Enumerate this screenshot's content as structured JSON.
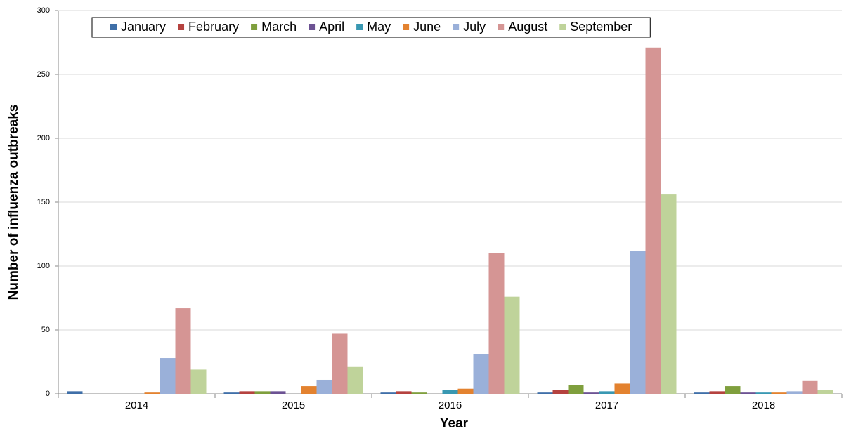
{
  "chart_data": {
    "type": "grouped-bar",
    "xlabel": "Year",
    "ylabel": "Number of influenza outbreaks",
    "categories": [
      "2014",
      "2015",
      "2016",
      "2017",
      "2018"
    ],
    "series": [
      {
        "name": "January",
        "color": "#3f6fa8",
        "values": [
          2,
          1,
          1,
          1,
          1
        ]
      },
      {
        "name": "February",
        "color": "#b5423f",
        "values": [
          0,
          2,
          2,
          3,
          2
        ]
      },
      {
        "name": "March",
        "color": "#7f9f3d",
        "values": [
          0,
          2,
          1,
          7,
          6
        ]
      },
      {
        "name": "April",
        "color": "#6c5293",
        "values": [
          0,
          2,
          0,
          1,
          1
        ]
      },
      {
        "name": "May",
        "color": "#3998b2",
        "values": [
          0,
          0,
          3,
          2,
          1
        ]
      },
      {
        "name": "June",
        "color": "#e3822f",
        "values": [
          1,
          6,
          4,
          8,
          1
        ]
      },
      {
        "name": "July",
        "color": "#9ab0d9",
        "values": [
          28,
          11,
          31,
          112,
          2
        ]
      },
      {
        "name": "August",
        "color": "#d59594",
        "values": [
          67,
          47,
          110,
          271,
          10
        ]
      },
      {
        "name": "September",
        "color": "#bfd39a",
        "values": [
          19,
          21,
          76,
          156,
          3
        ]
      }
    ],
    "ylim": [
      0,
      300
    ],
    "yticks": [
      0,
      50,
      100,
      150,
      200,
      250,
      300
    ],
    "grid": true,
    "legend": "top"
  }
}
